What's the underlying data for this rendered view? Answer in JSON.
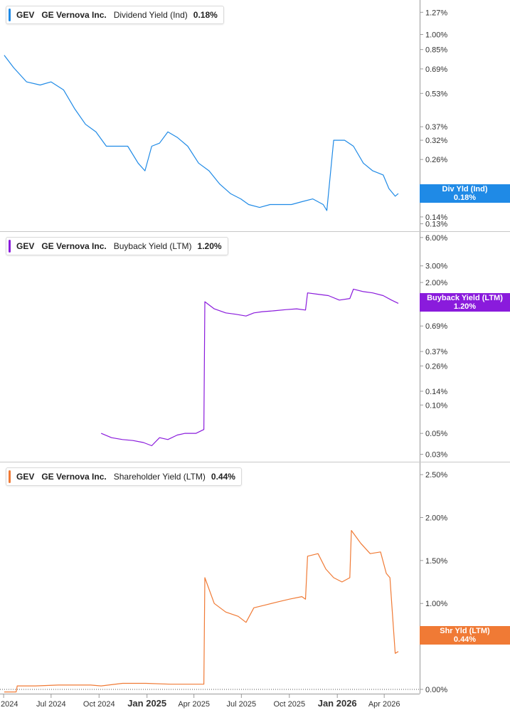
{
  "chart_data": [
    {
      "type": "line",
      "title": "",
      "legend": {
        "ticker": "GEV",
        "company": "GE Vernova Inc.",
        "metric": "Dividend Yield (Ind)",
        "value": "0.18%"
      },
      "badge": {
        "label": "Div Yld (Ind)",
        "value": "0.18%"
      },
      "color": "#1f8ae6",
      "y_scale": "log",
      "ylim": [
        0.12,
        1.45
      ],
      "y_ticks": [
        "1.27%",
        "1.00%",
        "0.85%",
        "0.69%",
        "0.53%",
        "0.37%",
        "0.32%",
        "0.26%",
        "0.14%",
        "0.13%"
      ],
      "y_tick_values": [
        1.27,
        1.0,
        0.85,
        0.69,
        0.53,
        0.37,
        0.32,
        0.26,
        0.14,
        0.13
      ],
      "series": [
        {
          "x": [
            "2024-04-02",
            "2024-04-20",
            "2024-05-15",
            "2024-06-10",
            "2024-07-01",
            "2024-07-25",
            "2024-08-15",
            "2024-09-05",
            "2024-09-25",
            "2024-10-15",
            "2024-11-05",
            "2024-11-25",
            "2024-12-15",
            "2024-12-28",
            "2025-01-10",
            "2025-01-25",
            "2025-02-10",
            "2025-02-28",
            "2025-03-20",
            "2025-04-10",
            "2025-04-30",
            "2025-05-20",
            "2025-06-10",
            "2025-06-30",
            "2025-07-15",
            "2025-08-05",
            "2025-08-25",
            "2025-09-15",
            "2025-10-05",
            "2025-10-25",
            "2025-11-15",
            "2025-12-05",
            "2025-12-12",
            "2025-12-25",
            "2026-01-15",
            "2026-02-01",
            "2026-02-20",
            "2026-03-10",
            "2026-03-30",
            "2026-04-10",
            "2026-04-22",
            "2026-04-28"
          ],
          "y": [
            0.8,
            0.7,
            0.6,
            0.58,
            0.6,
            0.55,
            0.45,
            0.38,
            0.35,
            0.3,
            0.3,
            0.3,
            0.25,
            0.23,
            0.3,
            0.31,
            0.35,
            0.33,
            0.3,
            0.25,
            0.23,
            0.2,
            0.18,
            0.17,
            0.16,
            0.155,
            0.16,
            0.16,
            0.16,
            0.165,
            0.17,
            0.16,
            0.15,
            0.32,
            0.32,
            0.3,
            0.25,
            0.23,
            0.22,
            0.19,
            0.175,
            0.18
          ]
        }
      ]
    },
    {
      "type": "line",
      "title": "",
      "legend": {
        "ticker": "GEV",
        "company": "GE Vernova Inc.",
        "metric": "Buyback Yield (LTM)",
        "value": "1.20%"
      },
      "badge": {
        "label": "Buyback Yield (LTM)",
        "value": "1.20%"
      },
      "color": "#8a1bdc",
      "y_scale": "log",
      "ylim": [
        0.025,
        7.0
      ],
      "y_ticks": [
        "6.00%",
        "3.00%",
        "2.00%",
        "0.69%",
        "0.37%",
        "0.26%",
        "0.14%",
        "0.10%",
        "0.05%",
        "0.03%"
      ],
      "y_tick_values": [
        6.0,
        3.0,
        2.0,
        0.69,
        0.37,
        0.26,
        0.14,
        0.1,
        0.05,
        0.03
      ],
      "series": [
        {
          "x": [
            "2024-10-05",
            "2024-10-25",
            "2024-11-15",
            "2024-12-05",
            "2024-12-25",
            "2025-01-10",
            "2025-01-25",
            "2025-02-10",
            "2025-02-28",
            "2025-03-15",
            "2025-04-05",
            "2025-04-20",
            "2025-04-22",
            "2025-05-10",
            "2025-06-01",
            "2025-06-20",
            "2025-07-10",
            "2025-07-25",
            "2025-08-10",
            "2025-09-01",
            "2025-09-25",
            "2025-10-15",
            "2025-11-01",
            "2025-11-05",
            "2025-11-25",
            "2025-12-15",
            "2026-01-05",
            "2026-01-25",
            "2026-02-01",
            "2026-02-20",
            "2026-03-10",
            "2026-03-30",
            "2026-04-15",
            "2026-04-28"
          ],
          "y": [
            0.05,
            0.045,
            0.043,
            0.042,
            0.04,
            0.037,
            0.045,
            0.043,
            0.048,
            0.05,
            0.05,
            0.055,
            1.25,
            1.05,
            0.95,
            0.92,
            0.88,
            0.95,
            0.98,
            1.0,
            1.03,
            1.05,
            1.02,
            1.55,
            1.5,
            1.45,
            1.3,
            1.35,
            1.7,
            1.6,
            1.55,
            1.45,
            1.3,
            1.2
          ]
        }
      ]
    },
    {
      "type": "line",
      "title": "",
      "legend": {
        "ticker": "GEV",
        "company": "GE Vernova Inc.",
        "metric": "Shareholder Yield (LTM)",
        "value": "0.44%"
      },
      "badge": {
        "label": "Shr Yld (LTM)",
        "value": "0.44%"
      },
      "color": "#f07a35",
      "y_scale": "linear",
      "ylim": [
        -0.05,
        2.65
      ],
      "y_ticks": [
        "2.50%",
        "2.00%",
        "1.50%",
        "1.00%",
        "0.00%"
      ],
      "y_tick_values": [
        2.5,
        2.0,
        1.5,
        1.0,
        0.0
      ],
      "zero_line": true,
      "series": [
        {
          "x": [
            "2024-04-02",
            "2024-04-25",
            "2024-04-27",
            "2024-06-01",
            "2024-07-15",
            "2024-08-01",
            "2024-09-15",
            "2024-10-05",
            "2024-11-15",
            "2024-12-30",
            "2025-02-15",
            "2025-04-01",
            "2025-04-20",
            "2025-04-22",
            "2025-05-10",
            "2025-06-01",
            "2025-06-25",
            "2025-07-10",
            "2025-07-25",
            "2025-08-15",
            "2025-09-10",
            "2025-10-01",
            "2025-10-25",
            "2025-11-01",
            "2025-11-05",
            "2025-11-25",
            "2025-12-10",
            "2025-12-25",
            "2026-01-10",
            "2026-01-25",
            "2026-01-28",
            "2026-02-15",
            "2026-03-05",
            "2026-03-25",
            "2026-04-05",
            "2026-04-12",
            "2026-04-22",
            "2026-04-28"
          ],
          "y": [
            -0.03,
            -0.03,
            0.04,
            0.04,
            0.05,
            0.05,
            0.05,
            0.04,
            0.07,
            0.07,
            0.06,
            0.06,
            0.06,
            1.3,
            1.0,
            0.9,
            0.85,
            0.78,
            0.95,
            0.98,
            1.02,
            1.05,
            1.08,
            1.05,
            1.55,
            1.58,
            1.4,
            1.3,
            1.25,
            1.3,
            1.85,
            1.7,
            1.58,
            1.6,
            1.35,
            1.3,
            0.42,
            0.44
          ]
        }
      ]
    }
  ],
  "x_axis": {
    "ticks": [
      {
        "date": "2024-04-01",
        "label": "2024",
        "bold": false
      },
      {
        "date": "2024-07-01",
        "label": "Jul 2024",
        "bold": false
      },
      {
        "date": "2024-10-01",
        "label": "Oct 2024",
        "bold": false
      },
      {
        "date": "2025-01-01",
        "label": "Jan 2025",
        "bold": true
      },
      {
        "date": "2025-04-01",
        "label": "Apr 2025",
        "bold": false
      },
      {
        "date": "2025-07-01",
        "label": "Jul 2025",
        "bold": false
      },
      {
        "date": "2025-10-01",
        "label": "Oct 2025",
        "bold": false
      },
      {
        "date": "2026-01-01",
        "label": "Jan 2026",
        "bold": true
      },
      {
        "date": "2026-04-01",
        "label": "Apr 2026",
        "bold": false
      }
    ]
  }
}
